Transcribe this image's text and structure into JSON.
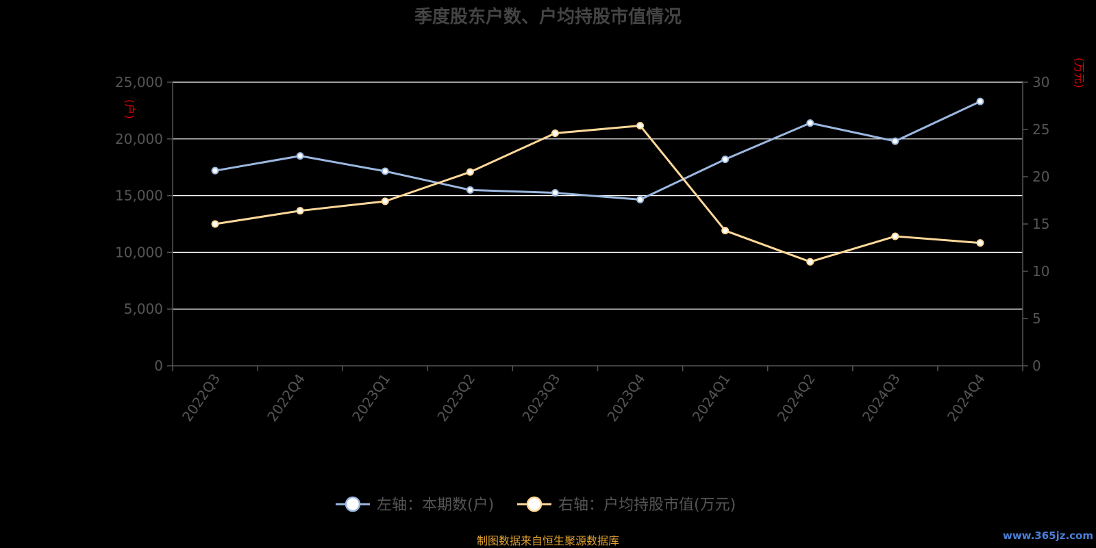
{
  "chart_data": {
    "type": "line",
    "title": "季度股东户数、户均持股市值情况",
    "categories": [
      "2022Q3",
      "2022Q4",
      "2023Q1",
      "2023Q2",
      "2023Q3",
      "2023Q4",
      "2024Q1",
      "2024Q2",
      "2024Q3",
      "2024Q4"
    ],
    "left_axis": {
      "unit": "(户)",
      "ylim": [
        0,
        25000
      ],
      "ticks": [
        "0",
        "5,000",
        "10,000",
        "15,000",
        "20,000",
        "25,000"
      ],
      "tick_values": [
        0,
        5000,
        10000,
        15000,
        20000,
        25000
      ]
    },
    "right_axis": {
      "unit": "(万元)",
      "ylim": [
        0,
        30
      ],
      "ticks": [
        "0",
        "5",
        "10",
        "15",
        "20",
        "25",
        "30"
      ],
      "tick_values": [
        0,
        5,
        10,
        15,
        20,
        25,
        30
      ]
    },
    "series": [
      {
        "name": "左轴：本期数(户)",
        "axis": "left",
        "color": "#9bb8e0",
        "values": [
          17200,
          18500,
          17150,
          15500,
          15250,
          14650,
          18200,
          21400,
          19800,
          23300
        ]
      },
      {
        "name": "右轴：户均持股市值(万元)",
        "axis": "right",
        "color": "#ffd99a",
        "values": [
          15.0,
          16.4,
          17.4,
          20.5,
          24.6,
          25.4,
          14.3,
          11.0,
          13.7,
          13.0
        ]
      }
    ],
    "grid": true,
    "legend": "bottom"
  },
  "source_text": "制图数据来自恒生聚源数据库",
  "watermark": "www.365jz.com"
}
